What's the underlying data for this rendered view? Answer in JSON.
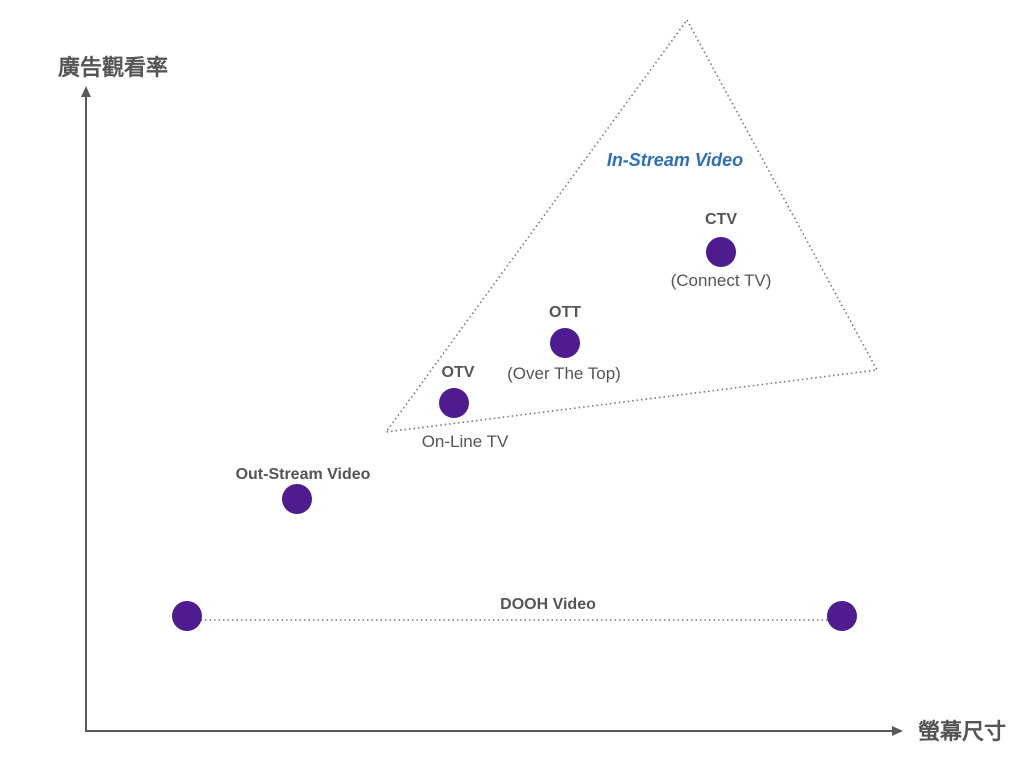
{
  "axes": {
    "y_label": "廣告觀看率",
    "x_label": "螢幕尺寸"
  },
  "in_stream": {
    "label": "In-Stream Video",
    "color": "#2f6fb5"
  },
  "points": {
    "ctv": {
      "title": "CTV",
      "subtitle": "(Connect TV)"
    },
    "ott": {
      "title": "OTT",
      "subtitle": "(Over The Top)"
    },
    "otv": {
      "title": "OTV",
      "subtitle": "On-Line TV"
    },
    "out_stream": {
      "title": "Out-Stream Video"
    },
    "dooh": {
      "title": "DOOH Video"
    }
  },
  "colors": {
    "dot": "#4f1c8f",
    "text": "#555555",
    "axis": "#5a5a5a"
  }
}
